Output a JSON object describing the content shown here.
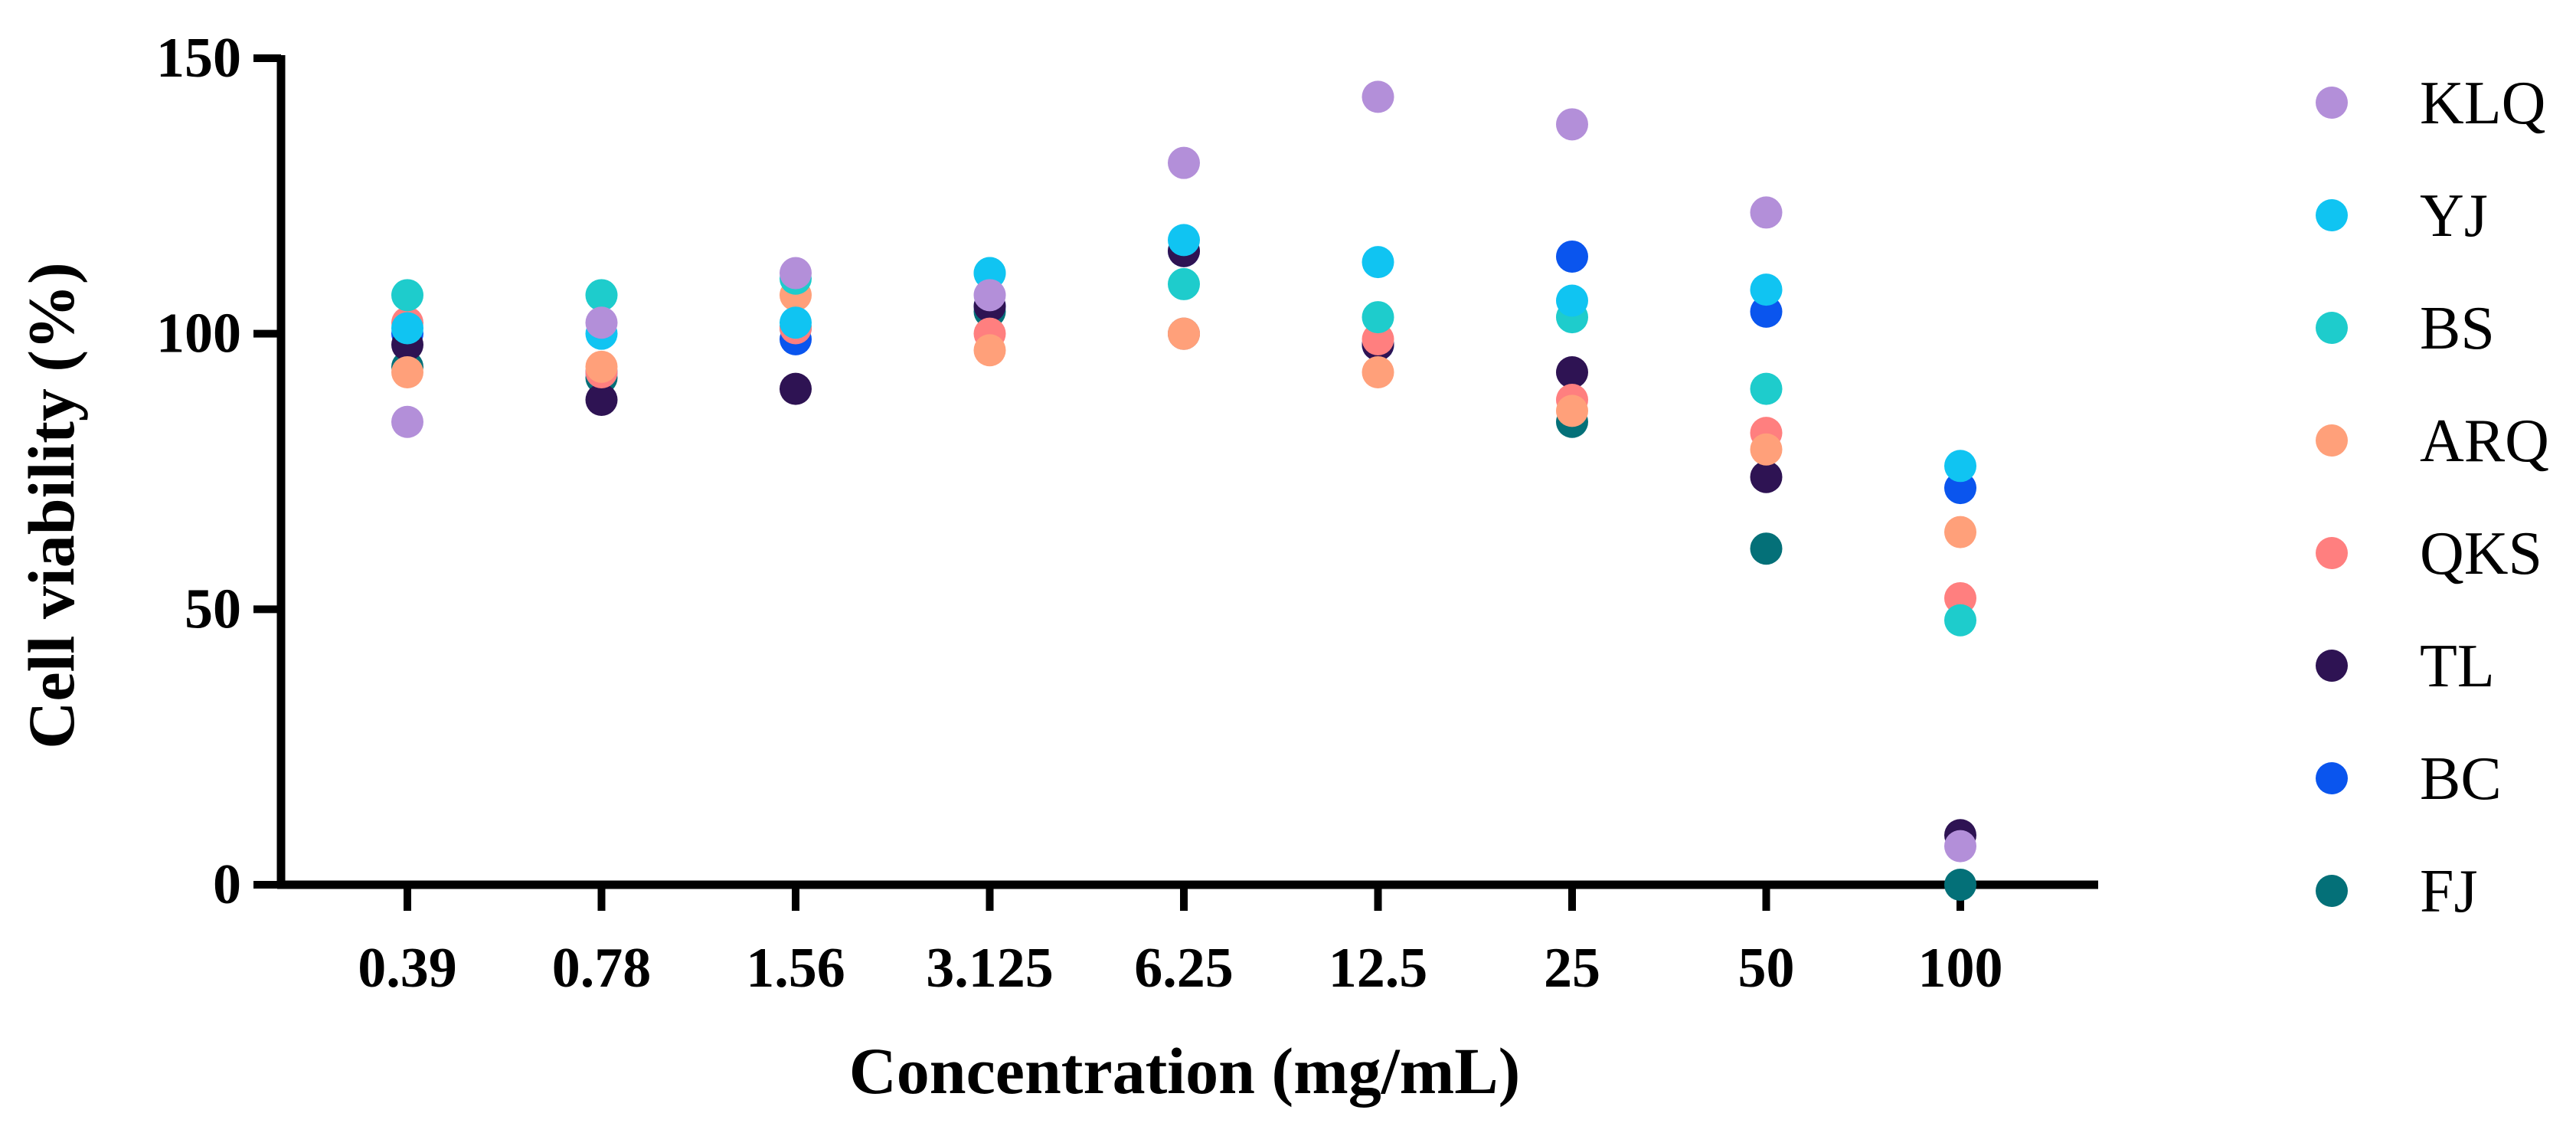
{
  "chart_data": {
    "type": "scatter",
    "title": "",
    "xlabel": "Concentration (mg/mL)",
    "ylabel": "Cell viability (%)",
    "categories": [
      "0.39",
      "0.78",
      "1.56",
      "3.125",
      "6.25",
      "12.5",
      "25",
      "50",
      "100"
    ],
    "ylim": [
      0,
      150
    ],
    "yticks": [
      "0",
      "50",
      "100",
      "150"
    ],
    "grid": false,
    "legend_position": "right",
    "series": [
      {
        "name": "KLQ",
        "color": "#B38FD9",
        "values": [
          84,
          102,
          111,
          107,
          131,
          143,
          138,
          122,
          7
        ]
      },
      {
        "name": "YJ",
        "color": "#10C4F2",
        "values": [
          101,
          100,
          102,
          111,
          117,
          113,
          106,
          108,
          76
        ]
      },
      {
        "name": "BS",
        "color": "#1ECCCC",
        "values": [
          107,
          107,
          110,
          111,
          109,
          103,
          103,
          90,
          48
        ]
      },
      {
        "name": "ARQ",
        "color": "#FFA07A",
        "values": [
          93,
          94,
          107,
          97,
          100,
          93,
          86,
          79,
          64
        ]
      },
      {
        "name": "QKS",
        "color": "#FF7F7F",
        "values": [
          102,
          93,
          101,
          100,
          100,
          99,
          88,
          82,
          52
        ]
      },
      {
        "name": "TL",
        "color": "#2E1353",
        "values": [
          98,
          88,
          90,
          105,
          115,
          98,
          93,
          74,
          9
        ]
      },
      {
        "name": "BC",
        "color": "#0A55EE",
        "values": [
          100,
          93,
          99,
          105,
          115,
          98,
          114,
          104,
          72
        ]
      },
      {
        "name": "FJ",
        "color": "#047078",
        "values": [
          94,
          92,
          101,
          104,
          100,
          98,
          84,
          61,
          0
        ]
      }
    ]
  }
}
